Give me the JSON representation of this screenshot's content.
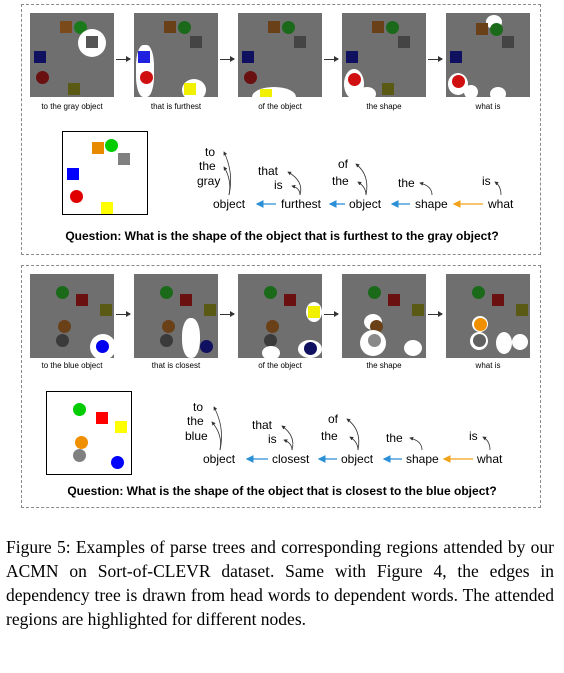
{
  "examples": [
    {
      "steps": [
        "to the gray object",
        "that is furthest",
        "of the object",
        "the shape",
        "what is"
      ],
      "question": "Question: What is the shape of the object that is furthest to the gray object?",
      "tree": {
        "nodes": [
          "object",
          "furthest",
          "object",
          "shape",
          "what"
        ],
        "deps_object1": [
          "to",
          "the",
          "gray"
        ],
        "deps_furthest": [
          "that",
          "is"
        ],
        "deps_object2": [
          "of",
          "the"
        ],
        "deps_shape": [
          "the"
        ],
        "deps_what": [
          "is"
        ]
      }
    },
    {
      "steps": [
        "to the blue object",
        "that is closest",
        "of the object",
        "the shape",
        "what is"
      ],
      "question": "Question: What is the shape of the object that is closest to the blue object?",
      "tree": {
        "nodes": [
          "object",
          "closest",
          "object",
          "shape",
          "what"
        ],
        "deps_object1": [
          "to",
          "the",
          "blue"
        ],
        "deps_furthest": [
          "that",
          "is"
        ],
        "deps_object2": [
          "of",
          "the"
        ],
        "deps_shape": [
          "the"
        ],
        "deps_what": [
          "is"
        ]
      }
    }
  ],
  "colors": {
    "edge_blue": "#2b8fd6",
    "edge_orange": "#f0a21a",
    "scene_bg": "#6f6f6f",
    "gray_obj": "#808080",
    "blue_obj": "#0000cc",
    "red_obj": "#cc0000",
    "green_obj": "#00aa00",
    "yellow_obj": "#e6e600",
    "orange_obj": "#e88a00"
  },
  "caption": "Figure 5: Examples of parse trees and corresponding regions attended by our ACMN on Sort-of-CLEVR dataset. Same with Figure 4, the edges in dependency tree is drawn from head words to dependent words. The attended regions are highlighted for different nodes."
}
